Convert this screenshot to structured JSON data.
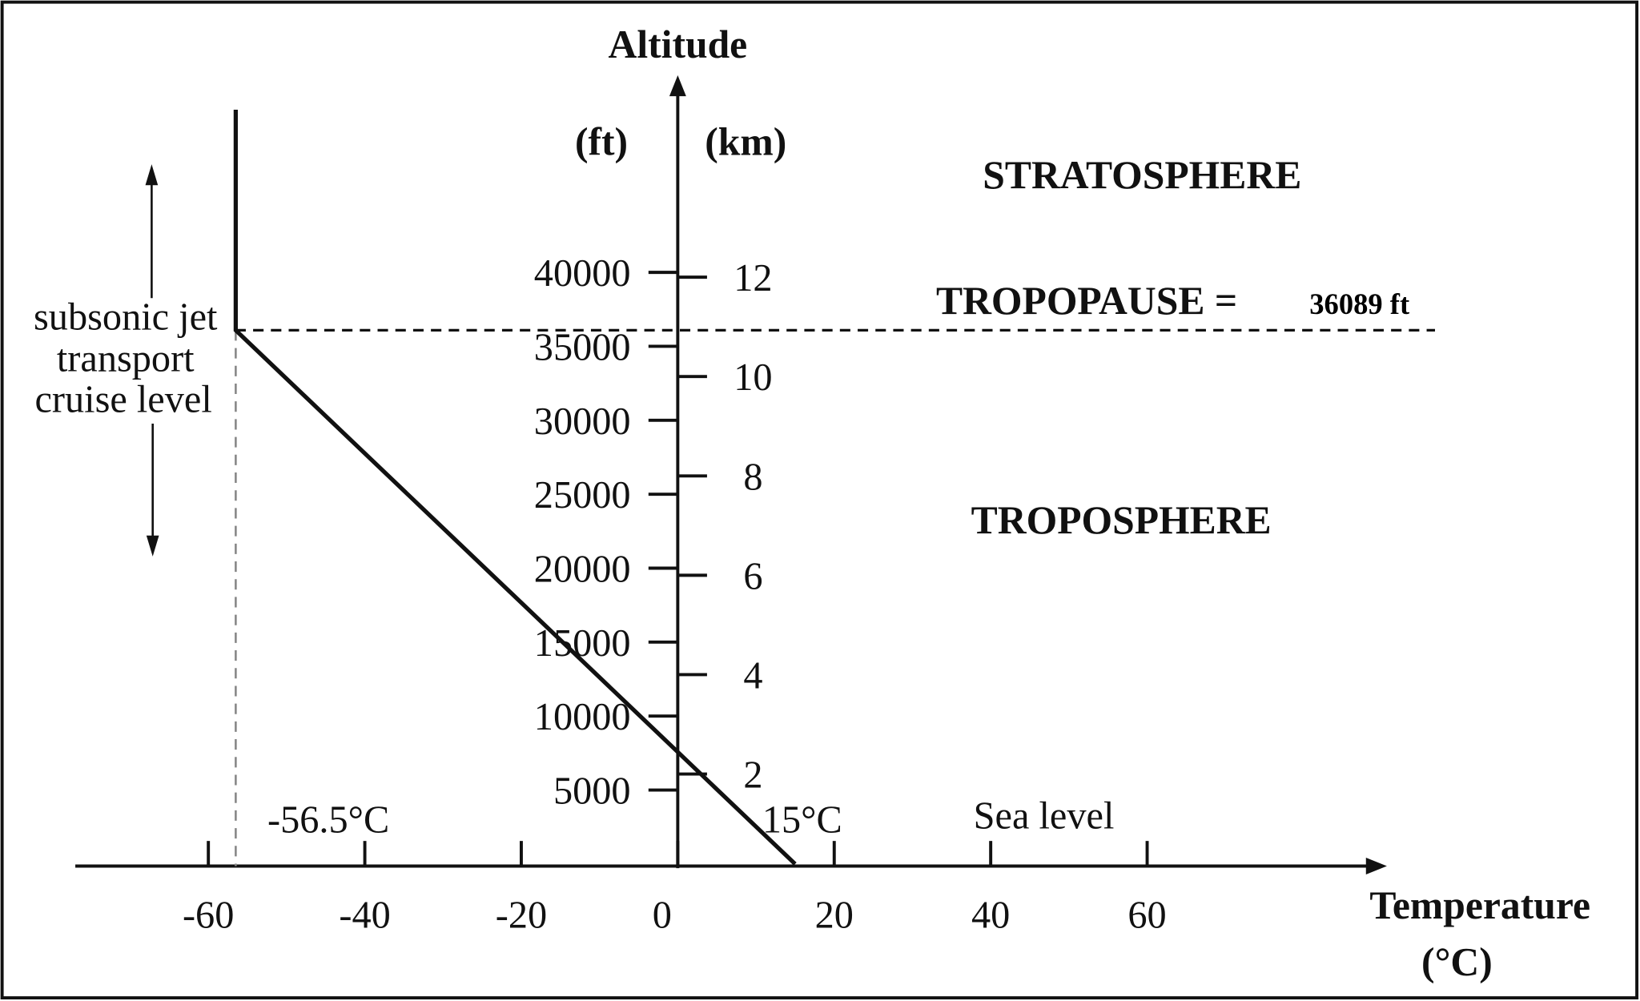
{
  "chart_data": {
    "type": "line",
    "title": "",
    "xlabel": "Temperature",
    "xlabel_unit": "(°C)",
    "ylabel": "Altitude",
    "ylabel_units": [
      "(ft)",
      "(km)"
    ],
    "x_ticks": [
      -60,
      -40,
      -20,
      0,
      20,
      40,
      60
    ],
    "ft_ticks": [
      5000,
      10000,
      15000,
      20000,
      25000,
      30000,
      35000,
      40000
    ],
    "km_ticks": [
      2,
      4,
      6,
      8,
      10,
      12
    ],
    "xlim": [
      -77,
      90
    ],
    "ylim_ft": [
      0,
      51000
    ],
    "grid": false,
    "series": [
      {
        "points": [
          {
            "x": 15,
            "y": 0
          },
          {
            "x": -56.5,
            "y": 36089
          },
          {
            "x": -56.5,
            "y": 51000
          }
        ],
        "color": "#111111"
      }
    ],
    "tropopause_ft": 36089,
    "annotations": {
      "stratosphere": "STRATOSPHERE",
      "tropopause": "TROPOPAUSE =",
      "tropopause_value": "36089 ft",
      "troposphere": "TROPOSPHERE",
      "cold_temp": "-56.5°C",
      "sea_level_temp": "15°C",
      "sea_level": "Sea level",
      "cruise": [
        "subsonic jet",
        "transport",
        "cruise level"
      ]
    }
  }
}
